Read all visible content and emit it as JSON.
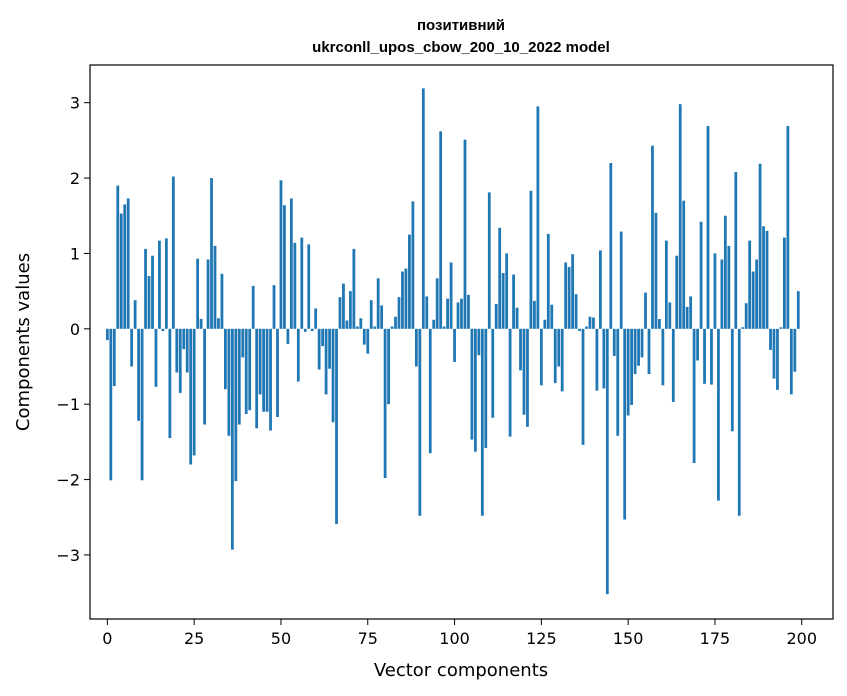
{
  "chart_data": {
    "type": "bar",
    "title_line1": "позитивний",
    "title_line2": "ukrconll_upos_cbow_200_10_2022 model",
    "xlabel": "Vector components",
    "ylabel": "Components values",
    "xlim": [
      -5,
      209
    ],
    "ylim": [
      -3.85,
      3.5
    ],
    "x_ticks": [
      0,
      25,
      50,
      75,
      100,
      125,
      150,
      175,
      200
    ],
    "x_tick_labels": [
      "0",
      "25",
      "50",
      "75",
      "100",
      "125",
      "150",
      "175",
      "200"
    ],
    "y_ticks": [
      -3,
      -2,
      -1,
      0,
      1,
      2,
      3
    ],
    "y_tick_labels": [
      "−3",
      "−2",
      "−1",
      "0",
      "1",
      "2",
      "3"
    ],
    "bar_color": "#1f77b4",
    "grid": false,
    "values": [
      -0.15,
      -2.01,
      -0.76,
      1.9,
      1.53,
      1.65,
      1.73,
      -0.5,
      0.38,
      -1.22,
      -2.01,
      1.06,
      0.7,
      0.97,
      -0.77,
      1.17,
      -0.03,
      1.2,
      -1.45,
      2.02,
      -0.58,
      -0.85,
      -0.27,
      -0.58,
      -1.8,
      -1.68,
      0.93,
      0.13,
      -1.27,
      0.92,
      2.0,
      1.1,
      0.14,
      0.73,
      -0.8,
      -1.42,
      -2.93,
      -2.02,
      -1.27,
      -0.38,
      -1.13,
      -1.08,
      0.57,
      -1.32,
      -0.87,
      -1.1,
      -1.1,
      -1.35,
      0.58,
      -1.17,
      1.97,
      1.64,
      -0.2,
      1.73,
      1.14,
      -0.7,
      1.21,
      -0.04,
      1.12,
      -0.03,
      0.27,
      -0.54,
      -0.23,
      -0.87,
      -0.53,
      -1.24,
      -2.59,
      0.42,
      0.6,
      0.11,
      0.5,
      1.06,
      0.03,
      0.14,
      -0.21,
      -0.33,
      0.38,
      0.03,
      0.67,
      0.31,
      -1.98,
      -1.0,
      0.03,
      0.16,
      0.42,
      0.76,
      0.8,
      1.25,
      1.69,
      -0.5,
      -2.48,
      3.19,
      0.43,
      -1.65,
      0.12,
      0.67,
      2.62,
      0.03,
      0.4,
      0.88,
      -0.44,
      0.35,
      0.4,
      2.51,
      0.45,
      -1.47,
      -1.63,
      -0.35,
      -2.48,
      -1.58,
      1.81,
      -1.18,
      0.33,
      1.34,
      0.74,
      1.0,
      -1.43,
      0.72,
      0.28,
      -0.55,
      -1.14,
      -1.3,
      1.83,
      0.37,
      2.95,
      -0.75,
      0.12,
      1.26,
      0.32,
      -0.72,
      -0.5,
      -0.83,
      0.88,
      0.82,
      0.99,
      0.46,
      -0.03,
      -1.54,
      0.03,
      0.16,
      0.15,
      -0.82,
      1.04,
      -0.79,
      -3.52,
      2.2,
      -0.36,
      -1.42,
      1.29,
      -2.53,
      -1.15,
      -1.01,
      -0.6,
      -0.49,
      -0.38,
      0.48,
      -0.6,
      2.43,
      1.54,
      0.13,
      -0.75,
      1.17,
      0.35,
      -0.97,
      0.97,
      2.98,
      1.7,
      0.29,
      0.43,
      -1.78,
      -0.42,
      1.42,
      -0.73,
      2.69,
      -0.74,
      1.0,
      -2.28,
      0.92,
      1.5,
      1.1,
      -1.36,
      2.08,
      -2.48,
      0.02,
      0.34,
      1.17,
      0.76,
      0.92,
      2.19,
      1.36,
      1.3,
      -0.28,
      -0.66,
      -0.81,
      0.02,
      1.21,
      2.69,
      -0.87,
      -0.57,
      0.5
    ]
  }
}
